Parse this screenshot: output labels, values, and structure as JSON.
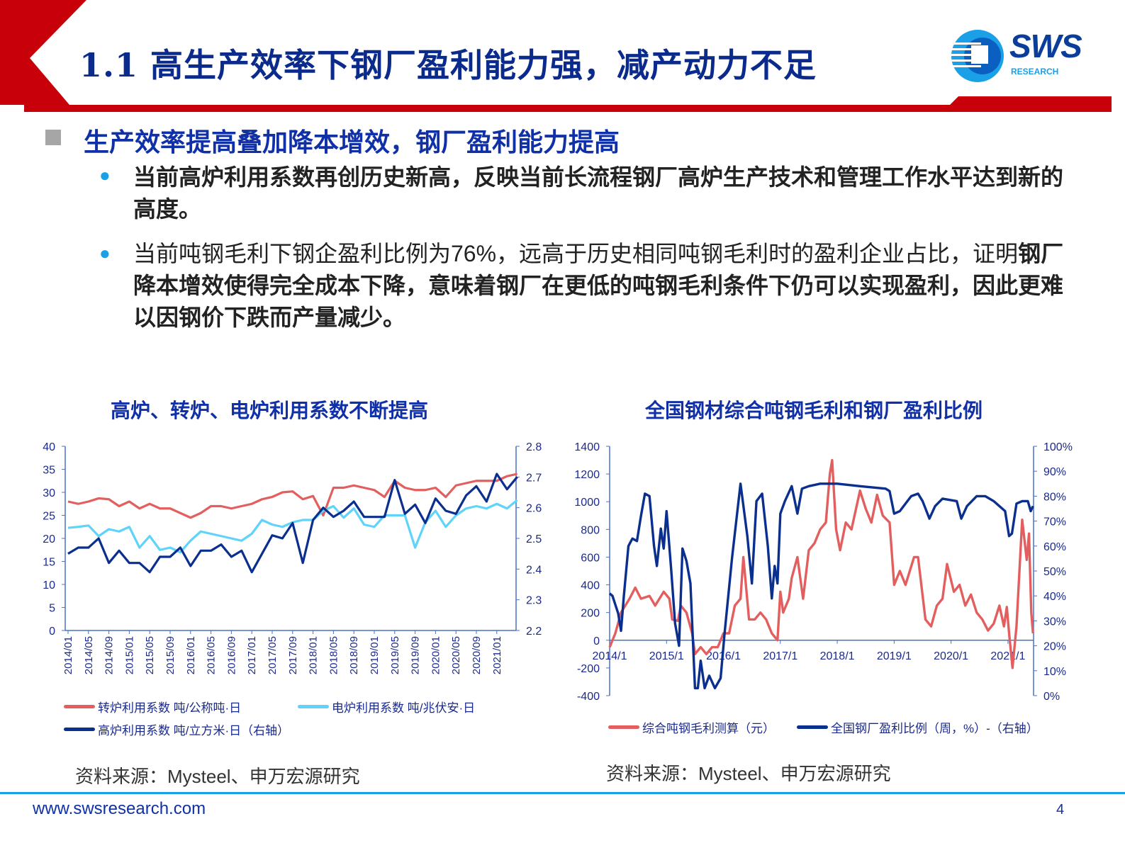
{
  "header": {
    "title": "1.1 高生产效率下钢厂盈利能力强，减产动力不足",
    "logo_text": "SWS",
    "logo_sub": "RESEARCH"
  },
  "section": {
    "heading": "生产效率提高叠加降本增效，钢厂盈利能力提高",
    "bullets": [
      {
        "parts": [
          {
            "text": "当前高炉利用系数再创历史新高，反映当前长流程钢厂高炉生产技术和管理工作水平达到新的高度。",
            "bold": true
          }
        ]
      },
      {
        "parts": [
          {
            "text": "当前吨钢毛利下钢企盈利比例为76%，远高于历史相同吨钢毛利时的盈利企业占比，证明",
            "bold": false
          },
          {
            "text": "钢厂降本增效使得完全成本下降，意味着钢厂在更低的吨钢毛利条件下仍可以实现盈利，因此更难以因钢价下跌而产量减少。",
            "bold": true
          }
        ]
      }
    ]
  },
  "colors": {
    "red": "#e35f5f",
    "light_blue": "#5fd3fa",
    "dark_blue": "#0a2f8f",
    "axis": "#4a72c8",
    "brand": "#c8000a"
  },
  "chart_data": [
    {
      "type": "line",
      "title": "高炉、转炉、电炉利用系数不断提高",
      "x": [
        "2014/01",
        "2014/03",
        "2014/05",
        "2014/07",
        "2014/09",
        "2014/11",
        "2015/01",
        "2015/03",
        "2015/05",
        "2015/07",
        "2015/09",
        "2015/11",
        "2016/01",
        "2016/03",
        "2016/05",
        "2016/07",
        "2016/09",
        "2016/11",
        "2017/01",
        "2017/03",
        "2017/05",
        "2017/07",
        "2017/09",
        "2017/11",
        "2018/01",
        "2018/03",
        "2018/05",
        "2018/07",
        "2018/09",
        "2018/11",
        "2019/01",
        "2019/03",
        "2019/05",
        "2019/07",
        "2019/09",
        "2019/11",
        "2020/01",
        "2020/03",
        "2020/05",
        "2020/07",
        "2020/09",
        "2020/11",
        "2021/01",
        "2021/03",
        "2021/05"
      ],
      "xticks": [
        "2014/01",
        "2014/05",
        "2014/09",
        "2015/01",
        "2015/05",
        "2015/09",
        "2016/01",
        "2016/05",
        "2016/09",
        "2017/01",
        "2017/05",
        "2017/09",
        "2018/01",
        "2018/05",
        "2018/09",
        "2019/01",
        "2019/05",
        "2019/09",
        "2020/01",
        "2020/05",
        "2020/09",
        "2021/01"
      ],
      "ylim": [
        0,
        40
      ],
      "yticks": [
        "0",
        "5",
        "10",
        "15",
        "20",
        "25",
        "30",
        "35",
        "40"
      ],
      "y2lim": [
        2.2,
        2.8
      ],
      "y2ticks": [
        "2.2",
        "2.3",
        "2.4",
        "2.5",
        "2.6",
        "2.7",
        "2.8"
      ],
      "series": [
        {
          "name": "转炉利用系数 吨/公称吨·日",
          "axis": "left",
          "color": "#e35f5f",
          "values": [
            28,
            27.5,
            28,
            28.7,
            28.5,
            27,
            28,
            26.5,
            27.5,
            26.5,
            26.5,
            25.5,
            24.5,
            25.5,
            27,
            27,
            26.5,
            27,
            27.5,
            28.5,
            29,
            30,
            30.2,
            28.5,
            29.2,
            25,
            31,
            31,
            31.5,
            31,
            30.5,
            29,
            32.5,
            31,
            30.5,
            30.5,
            31,
            29,
            31.5,
            32,
            32.5,
            32.5,
            32.5,
            33.5,
            34
          ]
        },
        {
          "name": "电炉利用系数 吨/兆伏安·日",
          "axis": "left",
          "color": "#5fd3fa",
          "values": [
            22.3,
            22.5,
            22.8,
            20.5,
            22,
            21.5,
            22.5,
            18,
            20.5,
            17.5,
            18,
            17,
            19.5,
            21.5,
            21,
            20.5,
            20,
            19.5,
            21,
            24,
            23,
            22.5,
            23.5,
            24,
            24,
            26,
            27,
            24.5,
            26.5,
            23,
            22.5,
            25,
            25,
            25,
            18,
            23.5,
            26,
            22.5,
            25,
            26.5,
            27,
            26.5,
            27.5,
            26.5,
            28.3
          ]
        },
        {
          "name": "高炉利用系数 吨/立方米·日（右轴）",
          "axis": "right",
          "color": "#0a2f8f",
          "values": [
            2.45,
            2.47,
            2.47,
            2.5,
            2.42,
            2.46,
            2.42,
            2.42,
            2.39,
            2.44,
            2.44,
            2.47,
            2.41,
            2.46,
            2.46,
            2.48,
            2.44,
            2.46,
            2.39,
            2.45,
            2.51,
            2.5,
            2.55,
            2.42,
            2.56,
            2.6,
            2.57,
            2.59,
            2.62,
            2.57,
            2.57,
            2.57,
            2.69,
            2.58,
            2.61,
            2.55,
            2.63,
            2.59,
            2.58,
            2.64,
            2.67,
            2.62,
            2.71,
            2.66,
            2.7
          ]
        }
      ],
      "source": "资料来源：Mysteel、申万宏源研究"
    },
    {
      "type": "line",
      "title": "全国钢材综合吨钢毛利和钢厂盈利比例",
      "xlim": [
        2014.0,
        2021.45
      ],
      "xticks": [
        {
          "v": 2014,
          "label": "2014/1"
        },
        {
          "v": 2015,
          "label": "2015/1"
        },
        {
          "v": 2016,
          "label": "2016/1"
        },
        {
          "v": 2017,
          "label": "2017/1"
        },
        {
          "v": 2018,
          "label": "2018/1"
        },
        {
          "v": 2019,
          "label": "2019/1"
        },
        {
          "v": 2020,
          "label": "2020/1"
        },
        {
          "v": 2021,
          "label": "2021/1"
        }
      ],
      "ylim": [
        -400,
        1400
      ],
      "yticks": [
        "-400",
        "-200",
        "0",
        "200",
        "400",
        "600",
        "800",
        "1000",
        "1200",
        "1400"
      ],
      "y2lim": [
        0,
        100
      ],
      "y2ticks": [
        "0%",
        "10%",
        "20%",
        "30%",
        "40%",
        "50%",
        "60%",
        "70%",
        "80%",
        "90%",
        "100%"
      ],
      "series": [
        {
          "name": "综合吨钢毛利测算（元）",
          "axis": "left",
          "color": "#e35f5f",
          "points": [
            [
              2014.0,
              -50
            ],
            [
              2014.1,
              50
            ],
            [
              2014.2,
              200
            ],
            [
              2014.35,
              300
            ],
            [
              2014.45,
              380
            ],
            [
              2014.55,
              300
            ],
            [
              2014.7,
              320
            ],
            [
              2014.8,
              250
            ],
            [
              2014.95,
              350
            ],
            [
              2015.05,
              300
            ],
            [
              2015.1,
              150
            ],
            [
              2015.2,
              140
            ],
            [
              2015.25,
              250
            ],
            [
              2015.35,
              200
            ],
            [
              2015.45,
              50
            ],
            [
              2015.5,
              -100
            ],
            [
              2015.6,
              -50
            ],
            [
              2015.7,
              -100
            ],
            [
              2015.8,
              -50
            ],
            [
              2015.9,
              -50
            ],
            [
              2016.0,
              50
            ],
            [
              2016.1,
              50
            ],
            [
              2016.2,
              250
            ],
            [
              2016.3,
              300
            ],
            [
              2016.35,
              600
            ],
            [
              2016.45,
              150
            ],
            [
              2016.55,
              150
            ],
            [
              2016.65,
              200
            ],
            [
              2016.75,
              150
            ],
            [
              2016.85,
              50
            ],
            [
              2016.95,
              0
            ],
            [
              2017.0,
              350
            ],
            [
              2017.05,
              200
            ],
            [
              2017.15,
              300
            ],
            [
              2017.2,
              450
            ],
            [
              2017.3,
              600
            ],
            [
              2017.4,
              300
            ],
            [
              2017.5,
              650
            ],
            [
              2017.6,
              700
            ],
            [
              2017.7,
              800
            ],
            [
              2017.8,
              850
            ],
            [
              2017.87,
              1200
            ],
            [
              2017.91,
              1300
            ],
            [
              2017.98,
              800
            ],
            [
              2018.05,
              650
            ],
            [
              2018.15,
              850
            ],
            [
              2018.25,
              800
            ],
            [
              2018.4,
              1080
            ],
            [
              2018.5,
              950
            ],
            [
              2018.6,
              850
            ],
            [
              2018.7,
              1050
            ],
            [
              2018.8,
              900
            ],
            [
              2018.92,
              850
            ],
            [
              2019.0,
              400
            ],
            [
              2019.1,
              500
            ],
            [
              2019.2,
              400
            ],
            [
              2019.35,
              600
            ],
            [
              2019.42,
              600
            ],
            [
              2019.55,
              150
            ],
            [
              2019.65,
              100
            ],
            [
              2019.75,
              250
            ],
            [
              2019.85,
              300
            ],
            [
              2019.93,
              550
            ],
            [
              2020.05,
              350
            ],
            [
              2020.15,
              400
            ],
            [
              2020.25,
              250
            ],
            [
              2020.35,
              330
            ],
            [
              2020.45,
              200
            ],
            [
              2020.55,
              150
            ],
            [
              2020.65,
              70
            ],
            [
              2020.75,
              120
            ],
            [
              2020.85,
              250
            ],
            [
              2020.93,
              100
            ],
            [
              2020.98,
              240
            ],
            [
              2021.02,
              50
            ],
            [
              2021.08,
              -200
            ],
            [
              2021.15,
              100
            ],
            [
              2021.25,
              870
            ],
            [
              2021.33,
              580
            ],
            [
              2021.37,
              770
            ],
            [
              2021.41,
              200
            ],
            [
              2021.44,
              50
            ]
          ]
        },
        {
          "name": "全国钢厂盈利比例（周，%）-（右轴）",
          "axis": "right",
          "color": "#0a2f8f",
          "points": [
            [
              2014.0,
              41
            ],
            [
              2014.05,
              40
            ],
            [
              2014.15,
              33
            ],
            [
              2014.2,
              26
            ],
            [
              2014.25,
              40
            ],
            [
              2014.33,
              60
            ],
            [
              2014.4,
              63
            ],
            [
              2014.48,
              62
            ],
            [
              2014.55,
              72
            ],
            [
              2014.62,
              81
            ],
            [
              2014.7,
              80
            ],
            [
              2014.78,
              60
            ],
            [
              2014.83,
              52
            ],
            [
              2014.9,
              67
            ],
            [
              2014.95,
              59
            ],
            [
              2015.0,
              74
            ],
            [
              2015.08,
              51
            ],
            [
              2015.15,
              29
            ],
            [
              2015.22,
              20
            ],
            [
              2015.28,
              59
            ],
            [
              2015.35,
              54
            ],
            [
              2015.42,
              45
            ],
            [
              2015.5,
              3
            ],
            [
              2015.55,
              3
            ],
            [
              2015.6,
              14
            ],
            [
              2015.67,
              3
            ],
            [
              2015.75,
              8
            ],
            [
              2015.85,
              3
            ],
            [
              2015.95,
              7
            ],
            [
              2016.02,
              25
            ],
            [
              2016.15,
              55
            ],
            [
              2016.3,
              85
            ],
            [
              2016.42,
              64
            ],
            [
              2016.5,
              45
            ],
            [
              2016.58,
              78
            ],
            [
              2016.68,
              81
            ],
            [
              2016.78,
              60
            ],
            [
              2016.85,
              39
            ],
            [
              2016.9,
              52
            ],
            [
              2016.95,
              45
            ],
            [
              2017.0,
              73
            ],
            [
              2017.08,
              78
            ],
            [
              2017.2,
              84
            ],
            [
              2017.3,
              73
            ],
            [
              2017.38,
              83
            ],
            [
              2017.5,
              84
            ],
            [
              2017.7,
              85
            ],
            [
              2018.0,
              85
            ],
            [
              2018.4,
              84
            ],
            [
              2018.85,
              83
            ],
            [
              2018.92,
              82
            ],
            [
              2019.0,
              73
            ],
            [
              2019.1,
              74
            ],
            [
              2019.3,
              80
            ],
            [
              2019.42,
              81
            ],
            [
              2019.5,
              78
            ],
            [
              2019.62,
              71
            ],
            [
              2019.72,
              76
            ],
            [
              2019.85,
              79
            ],
            [
              2020.1,
              78
            ],
            [
              2020.18,
              71
            ],
            [
              2020.28,
              76
            ],
            [
              2020.45,
              80
            ],
            [
              2020.6,
              80
            ],
            [
              2020.75,
              78
            ],
            [
              2020.95,
              74
            ],
            [
              2021.02,
              64
            ],
            [
              2021.07,
              65
            ],
            [
              2021.15,
              77
            ],
            [
              2021.25,
              78
            ],
            [
              2021.35,
              78
            ],
            [
              2021.4,
              74
            ],
            [
              2021.44,
              76
            ]
          ]
        }
      ],
      "source": "资料来源：Mysteel、申万宏源研究"
    }
  ],
  "footer": {
    "url": "www.swsresearch.com",
    "page": "4"
  }
}
